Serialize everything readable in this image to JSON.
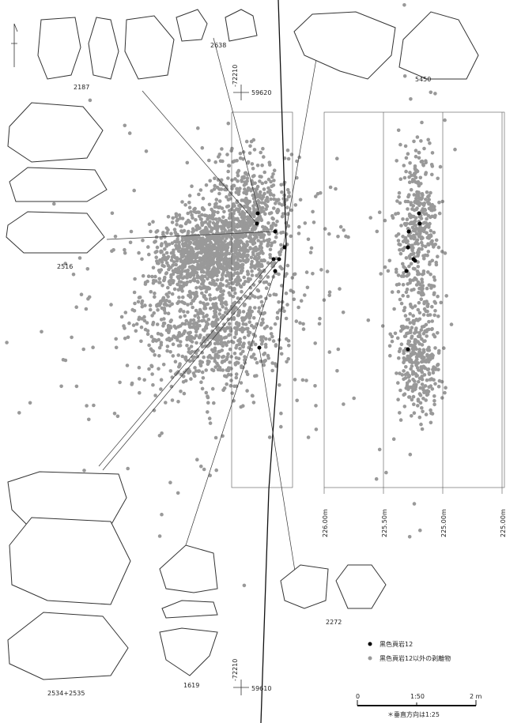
{
  "artifacts": {
    "a2187": "2187",
    "a2638": "2638",
    "a5450": "5450",
    "a2516": "2516",
    "a2534": "2534+2535",
    "a1619": "1619",
    "a2272": "2272"
  },
  "coordinates": {
    "top_x": "-72210",
    "top_y": "59620",
    "bottom_x": "-72210",
    "bottom_y": "59610"
  },
  "elevations": [
    "226.00m",
    "225.50m",
    "225.00m",
    "225.00m"
  ],
  "legend": {
    "black": "黒色頁岩12",
    "gray": "黒色頁岩12以外の剥離物"
  },
  "scale": {
    "zero": "0",
    "ratio": "1:50",
    "end": "2 m",
    "note": "＊垂直方向は1:25"
  }
}
